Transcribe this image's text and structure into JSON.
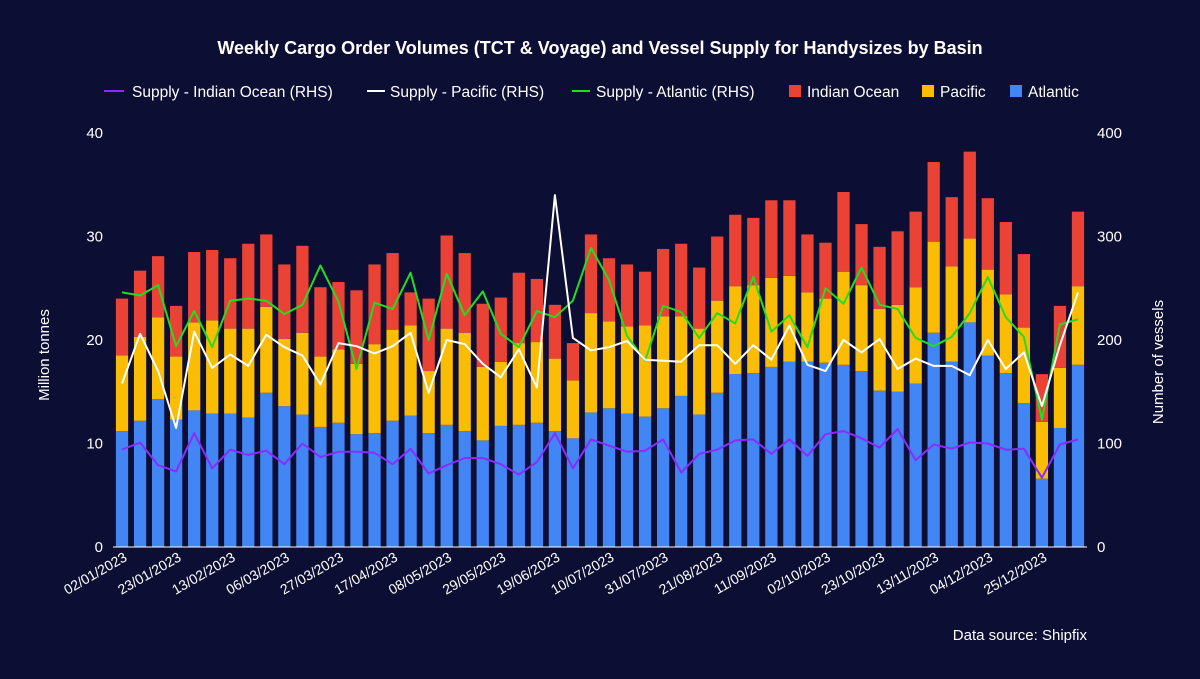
{
  "chart_data": {
    "type": "bar",
    "stacked": true,
    "title": "Weekly Cargo Order Volumes (TCT & Voyage) and Vessel Supply for Handysizes by Basin",
    "ylabel": "Million tonnes",
    "y2label": "Number of vessels",
    "ylim": [
      0,
      40
    ],
    "y2lim": [
      0,
      400
    ],
    "yticks": [
      "0",
      "10",
      "20",
      "30",
      "40"
    ],
    "y2ticks": [
      "0",
      "100",
      "200",
      "300",
      "400"
    ],
    "xtick_labels": [
      "02/01/2023",
      "23/01/2023",
      "13/02/2023",
      "06/03/2023",
      "27/03/2023",
      "17/04/2023",
      "08/05/2023",
      "29/05/2023",
      "19/06/2023",
      "10/07/2023",
      "31/07/2023",
      "21/08/2023",
      "11/09/2023",
      "02/10/2023",
      "23/10/2023",
      "13/11/2023",
      "04/12/2023",
      "25/12/2023"
    ],
    "source": "Data source: Shipfix",
    "legend": [
      {
        "name": "Supply - Indian Ocean (RHS)",
        "kind": "line",
        "color": "#8b2cff"
      },
      {
        "name": "Supply - Pacific (RHS)",
        "kind": "line",
        "color": "#ffffff"
      },
      {
        "name": "Supply - Atlantic (RHS)",
        "kind": "line",
        "color": "#22dd22"
      },
      {
        "name": "Indian Ocean",
        "kind": "bar",
        "color": "#ea4335"
      },
      {
        "name": "Pacific",
        "kind": "bar",
        "color": "#fbbc04"
      },
      {
        "name": "Atlantic",
        "kind": "bar",
        "color": "#4285f4"
      }
    ],
    "bar_series": [
      {
        "name": "Atlantic",
        "color": "#4285f4",
        "values": [
          11.2,
          12.2,
          14.3,
          12.3,
          13.2,
          12.9,
          12.9,
          12.5,
          14.9,
          13.6,
          12.8,
          11.6,
          12.0,
          10.9,
          11.0,
          12.2,
          12.7,
          11.0,
          11.8,
          11.2,
          10.3,
          11.7,
          11.8,
          12.0,
          11.2,
          10.5,
          13.0,
          13.4,
          12.9,
          12.6,
          13.4,
          14.6,
          12.8,
          14.9,
          16.7,
          16.8,
          17.4,
          17.9,
          17.9,
          17.8,
          17.6,
          17.0,
          15.1,
          15.0,
          15.8,
          20.7,
          17.9,
          21.7,
          18.5,
          16.8,
          13.9,
          6.6,
          11.5,
          17.6
        ]
      },
      {
        "name": "Pacific",
        "color": "#fbbc04",
        "values": [
          7.3,
          8.1,
          7.9,
          6.1,
          8.5,
          9.0,
          8.2,
          8.6,
          8.3,
          6.5,
          7.9,
          6.8,
          7.1,
          6.8,
          8.6,
          8.8,
          8.7,
          6.0,
          9.3,
          9.5,
          7.1,
          6.2,
          7.9,
          7.8,
          7.0,
          5.6,
          9.6,
          8.4,
          8.4,
          8.8,
          8.9,
          7.7,
          8.3,
          8.9,
          8.5,
          8.5,
          8.6,
          8.3,
          6.7,
          6.2,
          9.0,
          8.3,
          7.9,
          8.4,
          9.3,
          8.8,
          9.2,
          8.1,
          8.3,
          7.6,
          7.3,
          5.5,
          5.8,
          7.6
        ]
      },
      {
        "name": "Indian Ocean",
        "color": "#ea4335",
        "values": [
          5.5,
          6.4,
          5.9,
          4.9,
          6.8,
          6.8,
          6.8,
          8.2,
          7.0,
          7.2,
          8.4,
          6.7,
          6.5,
          7.1,
          7.7,
          7.4,
          3.2,
          7.0,
          9.0,
          7.7,
          6.1,
          6.2,
          6.8,
          6.1,
          5.2,
          3.6,
          7.6,
          6.1,
          6.0,
          5.2,
          6.5,
          7.0,
          5.9,
          6.2,
          6.9,
          6.5,
          7.5,
          7.3,
          5.6,
          5.4,
          7.7,
          5.9,
          6.0,
          7.1,
          7.3,
          7.7,
          6.7,
          8.4,
          6.9,
          7.0,
          7.1,
          4.6,
          6.0,
          7.2
        ]
      }
    ],
    "line_series": [
      {
        "name": "Supply - Indian Ocean (RHS)",
        "color": "#8b2cff",
        "values": [
          94,
          101,
          79,
          73,
          110,
          76,
          94,
          89,
          93,
          80,
          100,
          87,
          92,
          92,
          91,
          80,
          95,
          71,
          79,
          86,
          86,
          80,
          70,
          82,
          110,
          76,
          104,
          98,
          92,
          93,
          104,
          72,
          90,
          94,
          103,
          104,
          90,
          104,
          88,
          109,
          112,
          105,
          96,
          114,
          84,
          99,
          95,
          101,
          100,
          94,
          95,
          67,
          99,
          104
        ]
      },
      {
        "name": "Supply - Pacific (RHS)",
        "color": "#ffffff",
        "values": [
          158,
          206,
          170,
          115,
          208,
          173,
          186,
          175,
          205,
          193,
          185,
          157,
          197,
          194,
          187,
          194,
          207,
          149,
          200,
          196,
          177,
          164,
          191,
          154,
          340,
          202,
          190,
          193,
          199,
          181,
          180,
          179,
          195,
          195,
          177,
          195,
          181,
          214,
          176,
          170,
          200,
          188,
          201,
          172,
          182,
          175,
          175,
          166,
          200,
          172,
          188,
          136,
          195,
          246
        ]
      },
      {
        "name": "Supply - Atlantic (RHS)",
        "color": "#22dd22",
        "values": [
          246,
          243,
          253,
          194,
          228,
          193,
          238,
          240,
          238,
          225,
          234,
          272,
          237,
          172,
          236,
          230,
          265,
          200,
          264,
          224,
          247,
          206,
          193,
          228,
          222,
          238,
          289,
          258,
          204,
          180,
          233,
          227,
          202,
          226,
          216,
          261,
          208,
          224,
          193,
          250,
          235,
          270,
          234,
          230,
          202,
          194,
          203,
          226,
          261,
          222,
          203,
          123,
          215,
          220
        ]
      }
    ]
  }
}
